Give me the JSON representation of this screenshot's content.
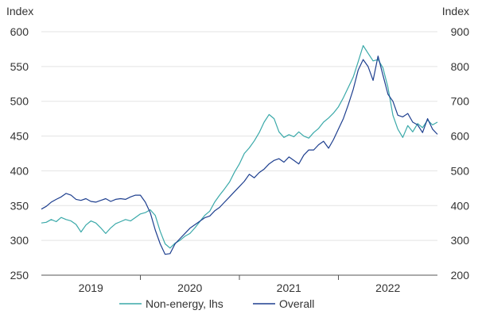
{
  "chart_data": {
    "type": "line",
    "left_axis": {
      "label": "Index",
      "ylim": [
        250,
        600
      ],
      "ticks": [
        250,
        300,
        350,
        400,
        450,
        500,
        550,
        600
      ]
    },
    "right_axis": {
      "label": "Index",
      "ylim": [
        200,
        900
      ],
      "ticks": [
        200,
        300,
        400,
        500,
        600,
        700,
        800,
        900
      ]
    },
    "x_categories": [
      "2019",
      "2020",
      "2021",
      "2022"
    ],
    "x_range": [
      2019.0,
      2023.0
    ],
    "series": [
      {
        "name": "Non-energy, lhs",
        "axis": "left",
        "color": "#3aa9a9",
        "x": [
          2019.0,
          2019.05,
          2019.1,
          2019.15,
          2019.2,
          2019.25,
          2019.3,
          2019.35,
          2019.4,
          2019.45,
          2019.5,
          2019.55,
          2019.6,
          2019.65,
          2019.7,
          2019.75,
          2019.8,
          2019.85,
          2019.9,
          2019.95,
          2020.0,
          2020.05,
          2020.1,
          2020.15,
          2020.2,
          2020.25,
          2020.3,
          2020.35,
          2020.4,
          2020.45,
          2020.5,
          2020.55,
          2020.6,
          2020.65,
          2020.7,
          2020.75,
          2020.8,
          2020.85,
          2020.9,
          2020.95,
          2021.0,
          2021.05,
          2021.1,
          2021.15,
          2021.2,
          2021.25,
          2021.3,
          2021.35,
          2021.4,
          2021.45,
          2021.5,
          2021.55,
          2021.6,
          2021.65,
          2021.7,
          2021.75,
          2021.8,
          2021.85,
          2021.9,
          2021.95,
          2022.0,
          2022.05,
          2022.1,
          2022.15,
          2022.2,
          2022.25,
          2022.3,
          2022.35,
          2022.4,
          2022.45,
          2022.5,
          2022.55,
          2022.6,
          2022.65,
          2022.7,
          2022.75,
          2022.8,
          2022.85,
          2022.9,
          2022.95,
          2023.0
        ],
        "values": [
          325,
          326,
          330,
          327,
          333,
          330,
          328,
          323,
          312,
          322,
          328,
          325,
          318,
          310,
          318,
          324,
          327,
          330,
          328,
          333,
          338,
          340,
          344,
          336,
          313,
          295,
          289,
          296,
          300,
          306,
          310,
          318,
          327,
          336,
          342,
          355,
          365,
          374,
          384,
          398,
          410,
          425,
          433,
          443,
          455,
          470,
          481,
          475,
          456,
          448,
          452,
          449,
          456,
          450,
          447,
          455,
          461,
          470,
          476,
          483,
          492,
          505,
          520,
          535,
          557,
          580,
          569,
          558,
          560,
          548,
          520,
          480,
          460,
          448,
          465,
          456,
          468,
          462,
          473,
          466,
          470
        ]
      },
      {
        "name": "Overall",
        "axis": "right",
        "color": "#1e3f8f",
        "x": [
          2019.0,
          2019.05,
          2019.1,
          2019.15,
          2019.2,
          2019.25,
          2019.3,
          2019.35,
          2019.4,
          2019.45,
          2019.5,
          2019.55,
          2019.6,
          2019.65,
          2019.7,
          2019.75,
          2019.8,
          2019.85,
          2019.9,
          2019.95,
          2020.0,
          2020.05,
          2020.1,
          2020.15,
          2020.2,
          2020.25,
          2020.3,
          2020.35,
          2020.4,
          2020.45,
          2020.5,
          2020.55,
          2020.6,
          2020.65,
          2020.7,
          2020.75,
          2020.8,
          2020.85,
          2020.9,
          2020.95,
          2021.0,
          2021.05,
          2021.1,
          2021.15,
          2021.2,
          2021.25,
          2021.3,
          2021.35,
          2021.4,
          2021.45,
          2021.5,
          2021.55,
          2021.6,
          2021.65,
          2021.7,
          2021.75,
          2021.8,
          2021.85,
          2021.9,
          2021.95,
          2022.0,
          2022.05,
          2022.1,
          2022.15,
          2022.2,
          2022.25,
          2022.3,
          2022.35,
          2022.4,
          2022.45,
          2022.5,
          2022.55,
          2022.6,
          2022.65,
          2022.7,
          2022.75,
          2022.8,
          2022.85,
          2022.9,
          2022.95,
          2023.0
        ],
        "values": [
          390,
          398,
          410,
          418,
          425,
          435,
          430,
          418,
          415,
          420,
          412,
          410,
          415,
          420,
          412,
          418,
          420,
          418,
          425,
          430,
          430,
          410,
          380,
          330,
          290,
          260,
          262,
          290,
          305,
          320,
          335,
          345,
          355,
          365,
          370,
          385,
          395,
          410,
          425,
          440,
          455,
          470,
          490,
          480,
          495,
          505,
          520,
          530,
          535,
          525,
          540,
          530,
          520,
          545,
          560,
          560,
          575,
          585,
          565,
          590,
          620,
          650,
          690,
          735,
          790,
          820,
          800,
          760,
          830,
          775,
          720,
          700,
          660,
          655,
          665,
          640,
          632,
          610,
          650,
          620,
          605
        ]
      }
    ]
  },
  "legend": {
    "items": [
      {
        "label": "Non-energy, lhs",
        "color": "#3aa9a9"
      },
      {
        "label": "Overall",
        "color": "#1e3f8f"
      }
    ]
  }
}
